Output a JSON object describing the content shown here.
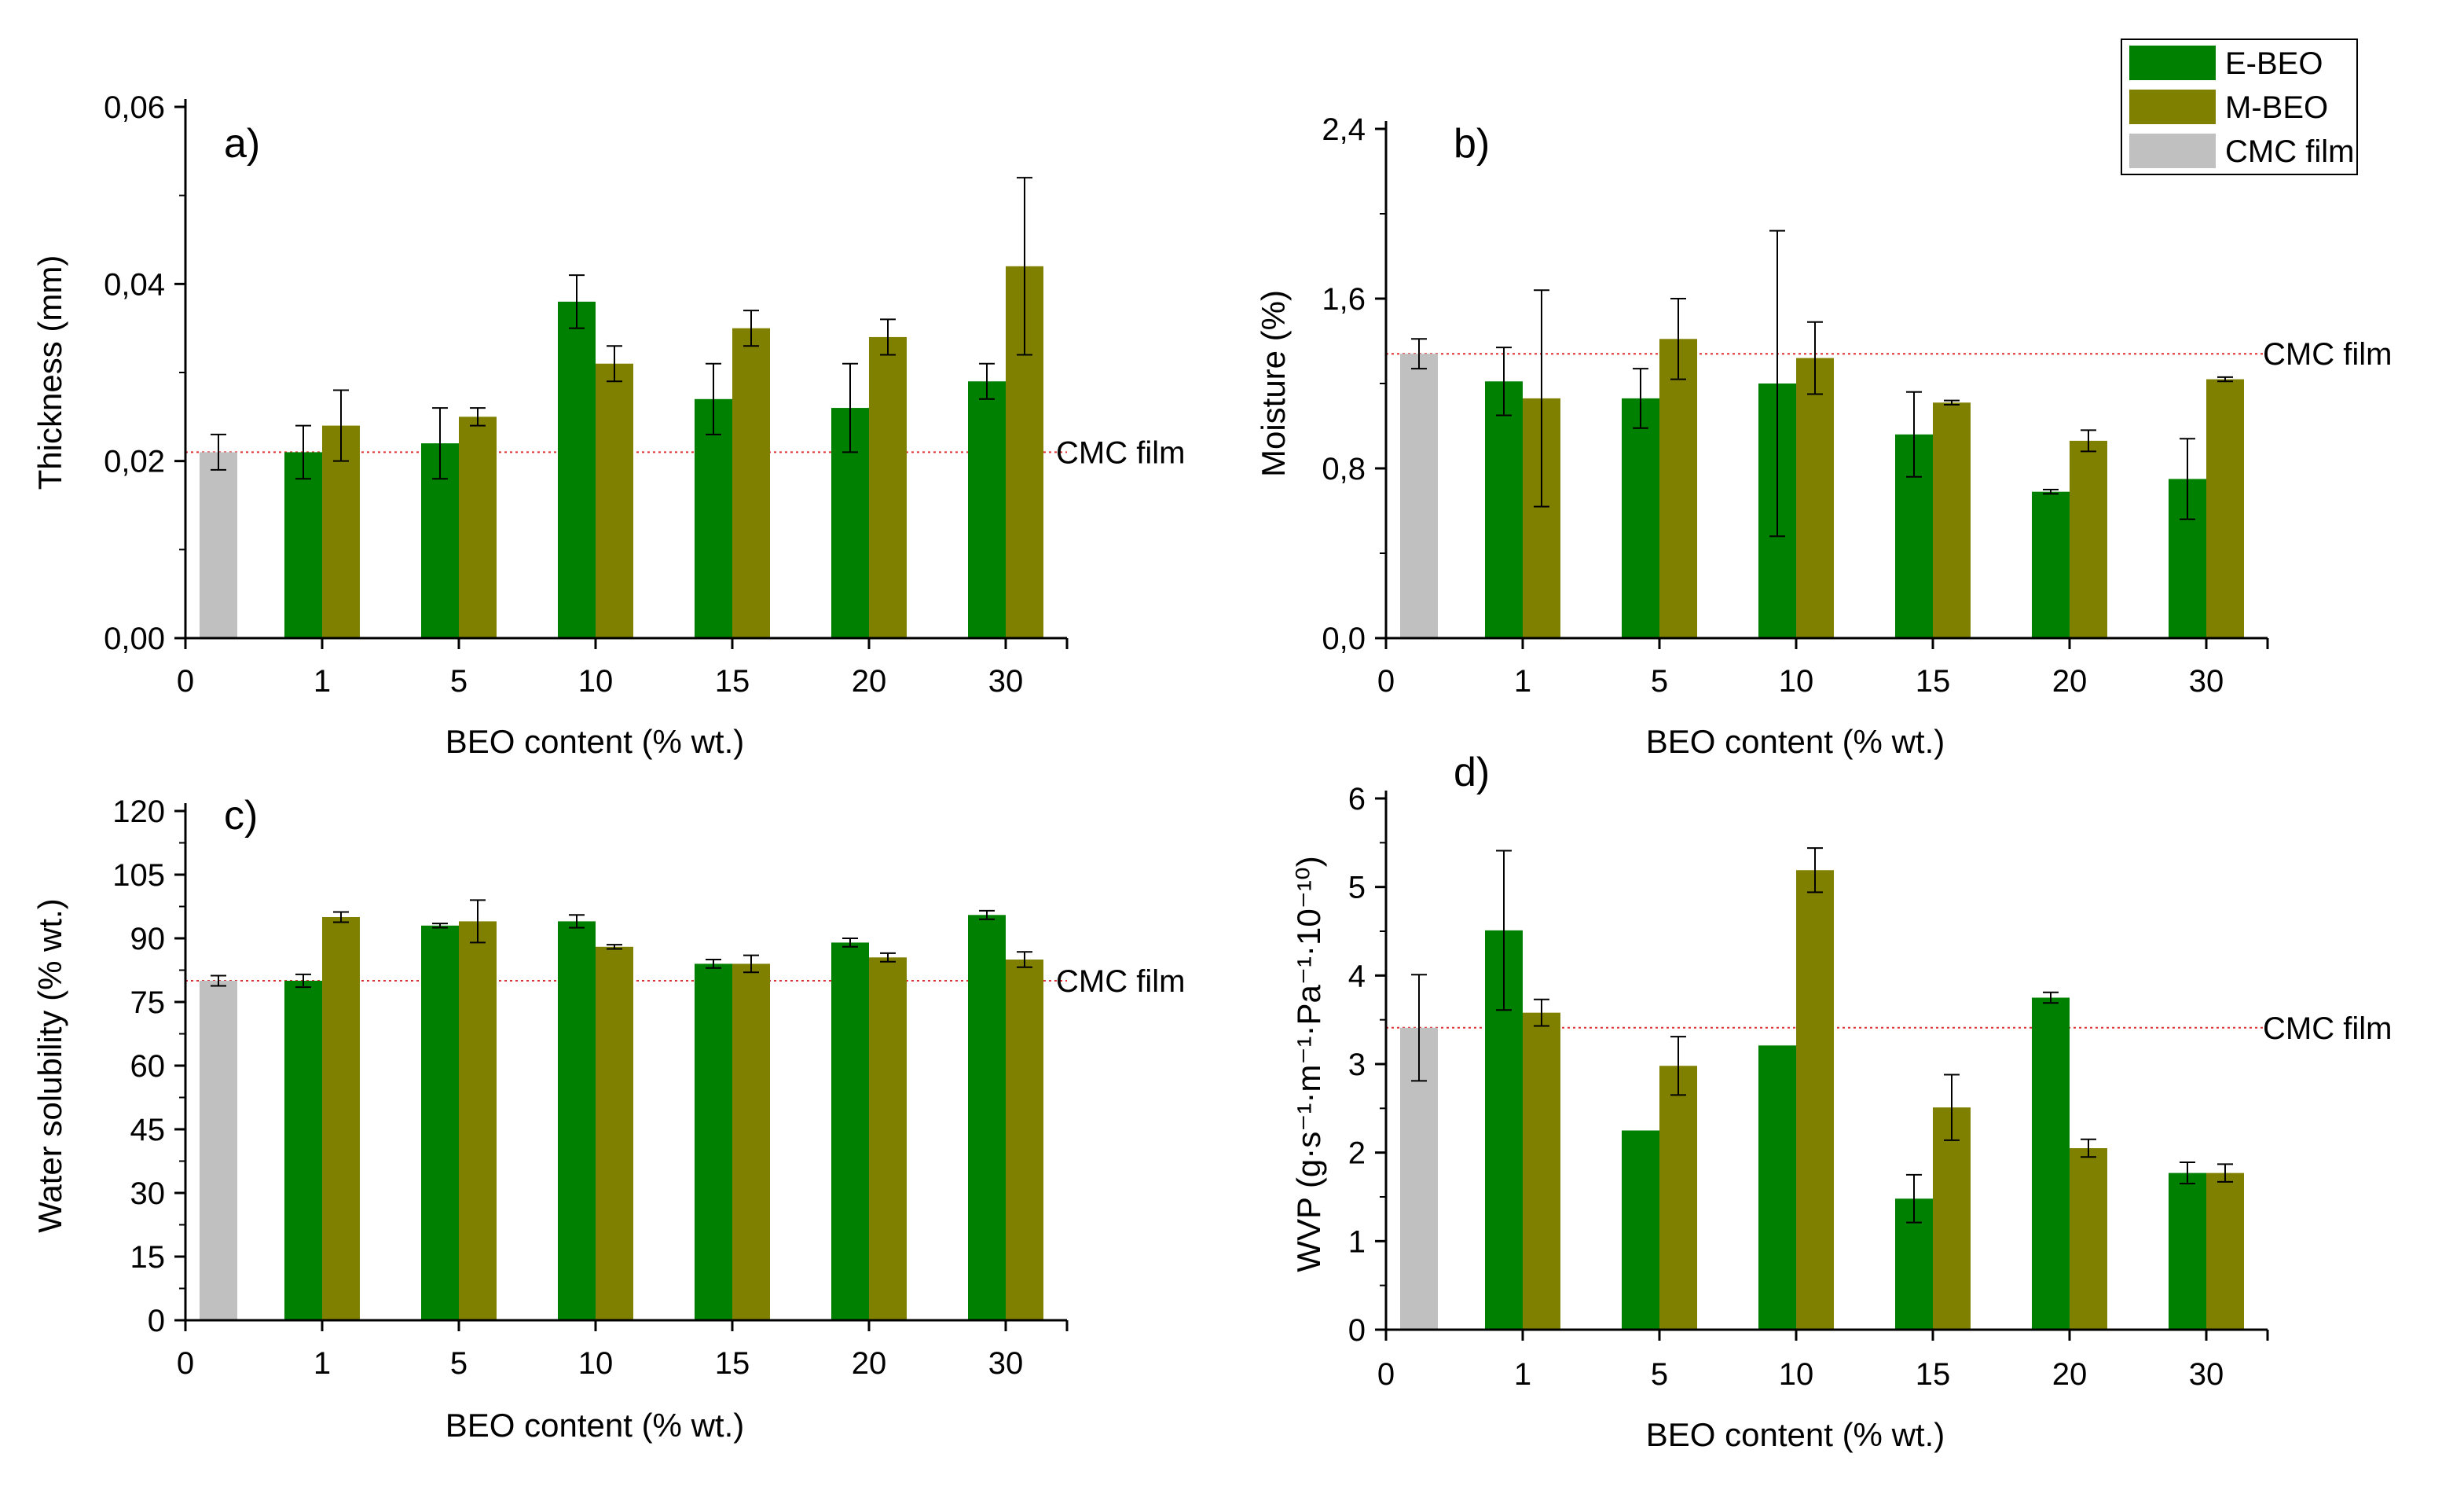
{
  "legend": {
    "entries": [
      {
        "name": "E-BEO",
        "color": "#008000"
      },
      {
        "name": "M-BEO",
        "color": "#808000"
      },
      {
        "name": "CMC film",
        "color": "#c0c0c0"
      }
    ]
  },
  "colors": {
    "ebeo": "#008000",
    "mbeo": "#808000",
    "cmc": "#c0c0c0",
    "ref_line": "#e03030"
  },
  "chart_data": [
    {
      "type": "bar",
      "panel": "a)",
      "xlabel": "BEO content (% wt.)",
      "ylabel": "Thickness (mm)",
      "ylim": [
        0,
        0.06
      ],
      "yticks": [
        "0,00",
        "0,02",
        "0,04",
        "0,06"
      ],
      "x_tick_labels": [
        "0",
        "1",
        "5",
        "10",
        "15",
        "20",
        "30"
      ],
      "categories": [
        "1",
        "5",
        "10",
        "15",
        "20",
        "30"
      ],
      "cmc_film": {
        "value": 0.021,
        "error": 0.002
      },
      "reference_line": {
        "label": "CMC film",
        "value": 0.021
      },
      "series": [
        {
          "name": "E-BEO",
          "values": [
            0.021,
            0.022,
            0.038,
            0.027,
            0.026,
            0.029
          ],
          "errors": [
            0.003,
            0.004,
            0.003,
            0.004,
            0.005,
            0.002
          ]
        },
        {
          "name": "M-BEO",
          "values": [
            0.024,
            0.025,
            0.031,
            0.035,
            0.034,
            0.042
          ],
          "errors": [
            0.004,
            0.001,
            0.002,
            0.002,
            0.002,
            0.01
          ]
        }
      ]
    },
    {
      "type": "bar",
      "panel": "b)",
      "xlabel": "BEO content (% wt.)",
      "ylabel": "Moisture (%)",
      "ylim": [
        0,
        2.4
      ],
      "yticks": [
        "0,0",
        "0,8",
        "1,6",
        "2,4"
      ],
      "x_tick_labels": [
        "0",
        "1",
        "5",
        "10",
        "15",
        "20",
        "30"
      ],
      "categories": [
        "1",
        "5",
        "10",
        "15",
        "20",
        "30"
      ],
      "cmc_film": {
        "value": 1.34,
        "error": 0.07
      },
      "reference_line": {
        "label": "CMC film",
        "value": 1.34
      },
      "series": [
        {
          "name": "E-BEO",
          "values": [
            1.21,
            1.13,
            1.2,
            0.96,
            0.69,
            0.75
          ],
          "errors": [
            0.16,
            0.14,
            0.72,
            0.2,
            0.01,
            0.19
          ]
        },
        {
          "name": "M-BEO",
          "values": [
            1.13,
            1.41,
            1.32,
            1.11,
            0.93,
            1.22
          ],
          "errors": [
            0.51,
            0.19,
            0.17,
            0.01,
            0.05,
            0.01
          ]
        }
      ]
    },
    {
      "type": "bar",
      "panel": "c)",
      "xlabel": "BEO content (% wt.)",
      "ylabel": "Water solubility (% wt.)",
      "ylim": [
        0,
        120
      ],
      "yticks": [
        "0",
        "15",
        "30",
        "45",
        "60",
        "75",
        "90",
        "105",
        "120"
      ],
      "x_tick_labels": [
        "0",
        "1",
        "5",
        "10",
        "15",
        "20",
        "30"
      ],
      "categories": [
        "1",
        "5",
        "10",
        "15",
        "20",
        "30"
      ],
      "cmc_film": {
        "value": 80,
        "error": 1.2
      },
      "reference_line": {
        "label": "CMC film",
        "value": 80
      },
      "series": [
        {
          "name": "E-BEO",
          "values": [
            80,
            93,
            94,
            84,
            89,
            95.5
          ],
          "errors": [
            1.5,
            0.5,
            1.5,
            1,
            1,
            1
          ]
        },
        {
          "name": "M-BEO",
          "values": [
            95,
            94,
            88,
            84,
            85.5,
            85
          ],
          "errors": [
            1.2,
            5,
            0.5,
            2,
            1,
            1.8
          ]
        }
      ]
    },
    {
      "type": "bar",
      "panel": "d)",
      "xlabel": "BEO content (% wt.)",
      "ylabel": "WVP (g·s⁻¹·m⁻¹·Pa⁻¹·10⁻¹⁰)",
      "ylim": [
        0,
        6
      ],
      "yticks": [
        "0",
        "1",
        "2",
        "3",
        "4",
        "5",
        "6"
      ],
      "x_tick_labels": [
        "0",
        "1",
        "5",
        "10",
        "15",
        "20",
        "30"
      ],
      "categories": [
        "1",
        "5",
        "10",
        "15",
        "20",
        "30"
      ],
      "cmc_film": {
        "value": 3.41,
        "error": 0.6
      },
      "reference_line": {
        "label": "CMC film",
        "value": 3.41
      },
      "series": [
        {
          "name": "E-BEO",
          "values": [
            4.51,
            2.25,
            3.21,
            1.48,
            3.75,
            1.77
          ],
          "errors": [
            0.9,
            0,
            0,
            0.27,
            0.06,
            0.12
          ]
        },
        {
          "name": "M-BEO",
          "values": [
            3.58,
            2.98,
            5.19,
            2.51,
            2.05,
            1.77
          ],
          "errors": [
            0.15,
            0.33,
            0.25,
            0.37,
            0.1,
            0.1
          ]
        }
      ]
    }
  ]
}
